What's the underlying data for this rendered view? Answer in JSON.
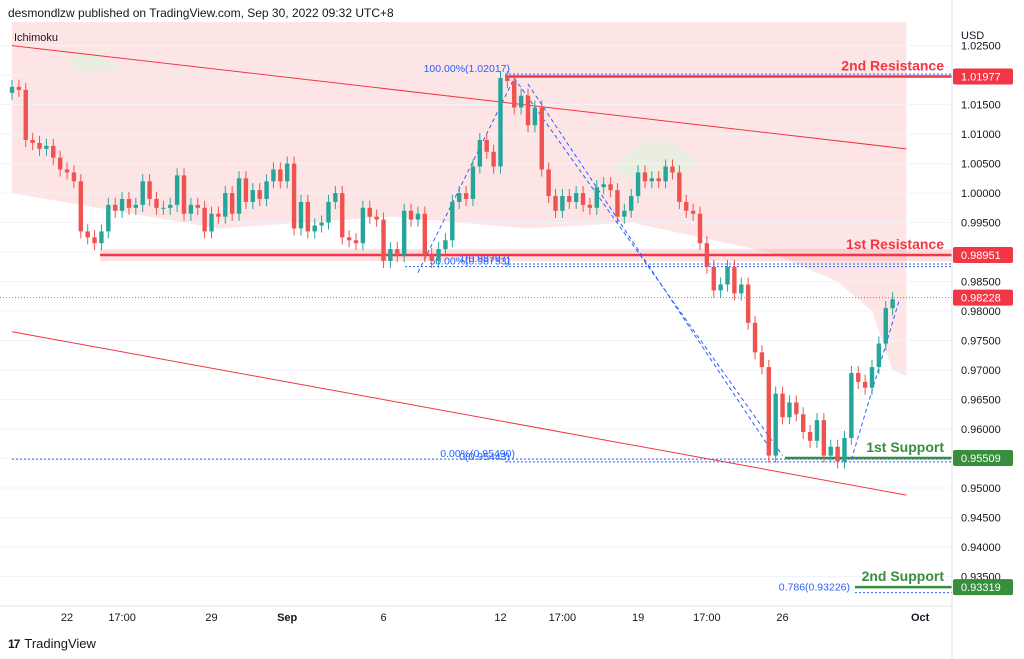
{
  "header": {
    "publisher": "desmondlzw published on TradingView.com, Sep 30, 2022 09:32 UTC+8"
  },
  "indicator": {
    "name": "Ichimoku"
  },
  "brand": {
    "logo": "17",
    "name": "TradingView"
  },
  "colors": {
    "up": "#26a69a",
    "down": "#ef5350",
    "resistance": "#f23645",
    "support": "#388e3c",
    "fib": "#2962ff",
    "cloud_red": "#fcdcdc",
    "cloud_green": "#e7eedf"
  },
  "chart_data": {
    "type": "candlestick",
    "title": "",
    "yunit": "USD",
    "ylim": [
      0.93,
      1.029
    ],
    "y_ticks": [
      "1.02500",
      "1.02000",
      "1.01500",
      "1.01000",
      "1.00500",
      "1.00000",
      "0.99500",
      "0.99000",
      "0.98500",
      "0.98000",
      "0.97500",
      "0.97000",
      "0.96500",
      "0.96000",
      "0.95500",
      "0.95000",
      "0.94500",
      "0.94000",
      "0.93500"
    ],
    "x_ticks": [
      {
        "label": "22",
        "t": 8
      },
      {
        "label": "17:00",
        "t": 16
      },
      {
        "label": "29",
        "t": 29
      },
      {
        "label": "Sep",
        "t": 40
      },
      {
        "label": "6",
        "t": 54
      },
      {
        "label": "12",
        "t": 71
      },
      {
        "label": "17:00",
        "t": 80
      },
      {
        "label": "19",
        "t": 91
      },
      {
        "label": "17:00",
        "t": 101
      },
      {
        "label": "26",
        "t": 112
      },
      {
        "label": "Oct",
        "t": 132
      }
    ],
    "price_labels": [
      {
        "text": "1.01977",
        "value": 1.01977,
        "kind": "resistance"
      },
      {
        "text": "0.98951",
        "value": 0.98951,
        "kind": "resistance"
      },
      {
        "text": "0.98228",
        "value": 0.98228,
        "kind": "current"
      },
      {
        "text": "0.95509",
        "value": 0.95509,
        "kind": "support"
      },
      {
        "text": "0.93319",
        "value": 0.93319,
        "kind": "support"
      }
    ],
    "levels": [
      {
        "label": "2nd Resistance",
        "value": 1.01977,
        "kind": "resistance"
      },
      {
        "label": "1st Resistance",
        "value": 0.98951,
        "kind": "resistance"
      },
      {
        "label": "1st Support",
        "value": 0.95509,
        "kind": "support"
      },
      {
        "label": "2nd Support",
        "value": 0.93319,
        "kind": "support"
      }
    ],
    "fib_labels": [
      {
        "text": "100.00%(1.02017)",
        "value": 1.02017
      },
      {
        "text": "50.00%(0.98753)",
        "value": 0.98753
      },
      {
        "text": "1(0.98797)",
        "value": 0.98797
      },
      {
        "text": "0.00%(0.95490)",
        "value": 0.9549
      },
      {
        "text": "0(0.95443)",
        "value": 0.95443
      },
      {
        "text": "0.786(0.93226)",
        "value": 0.93226
      }
    ],
    "channel": {
      "upper": [
        [
          0,
          1.025
        ],
        [
          130,
          1.0075
        ]
      ],
      "lower": [
        [
          0,
          0.9765
        ],
        [
          130,
          0.9488
        ]
      ]
    },
    "closes": [
      1.018,
      1.0175,
      1.009,
      1.0085,
      1.0075,
      1.008,
      1.006,
      1.004,
      1.0035,
      1.002,
      0.9935,
      0.9925,
      0.9915,
      0.9935,
      0.998,
      0.997,
      0.999,
      0.9975,
      0.998,
      1.002,
      0.999,
      0.9975,
      0.9975,
      0.998,
      1.003,
      0.9965,
      0.998,
      0.9975,
      0.9935,
      0.9965,
      0.996,
      1.0,
      0.9965,
      1.0025,
      0.9985,
      1.0005,
      0.999,
      1.002,
      1.004,
      1.002,
      1.005,
      0.994,
      0.9985,
      0.9935,
      0.9945,
      0.995,
      0.9985,
      1.0,
      0.9925,
      0.992,
      0.9915,
      0.9975,
      0.996,
      0.9955,
      0.9885,
      0.9905,
      0.9895,
      0.997,
      0.9955,
      0.9965,
      0.9895,
      0.9885,
      0.9905,
      0.992,
      0.9985,
      1.0,
      0.999,
      1.0045,
      1.009,
      1.007,
      1.0045,
      1.0195,
      1.019,
      1.0145,
      1.0165,
      1.0115,
      1.0145,
      1.004,
      0.9995,
      0.997,
      0.9995,
      0.9985,
      1.0,
      0.998,
      0.9975,
      1.001,
      1.0015,
      1.0005,
      0.996,
      0.997,
      0.9995,
      1.0035,
      1.002,
      1.0025,
      1.002,
      1.0045,
      1.0035,
      0.9985,
      0.997,
      0.9965,
      0.9915,
      0.9875,
      0.9835,
      0.9845,
      0.9875,
      0.983,
      0.9845,
      0.978,
      0.973,
      0.9705,
      0.9555,
      0.966,
      0.962,
      0.9645,
      0.9625,
      0.9595,
      0.958,
      0.9615,
      0.9555,
      0.957,
      0.9545,
      0.9585,
      0.9695,
      0.968,
      0.967,
      0.9705,
      0.9745,
      0.9805,
      0.982
    ],
    "last": {
      "value": 0.98228
    }
  }
}
